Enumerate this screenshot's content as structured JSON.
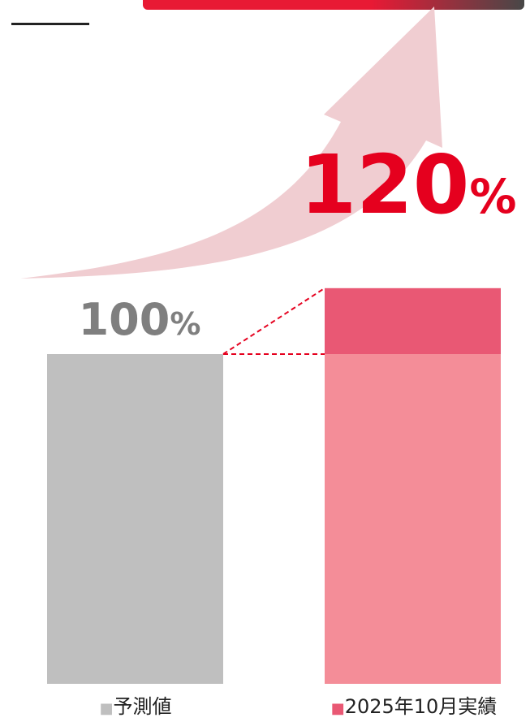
{
  "chart_data": {
    "type": "bar",
    "categories": [
      "予測値",
      "2025年10月実績"
    ],
    "values": [
      100,
      120
    ],
    "value_unit": "%",
    "data_labels": [
      {
        "number": "100",
        "unit": "%"
      },
      {
        "number": "120",
        "unit": "%"
      }
    ],
    "legend_marker": "■",
    "baseline_value": 100,
    "ylim": [
      0,
      125
    ],
    "grid": false,
    "legend": "bottom",
    "title": "",
    "xlabel": "",
    "ylabel": ""
  },
  "colors": {
    "forecast_bar": "#bfbfbf",
    "forecast_label": "#7f7f7f",
    "actual_base": "#f48d98",
    "actual_increase": "#e95874",
    "actual_label": "#e5001e",
    "connector": "#e5001e",
    "arrow": "#f0cdd1",
    "category_text": "#222222",
    "legend_marker_forecast": "#bfbfbf",
    "legend_marker_actual": "#e95874"
  },
  "decorations": {
    "arrow_icon": "upward-trend-arrow-icon"
  }
}
